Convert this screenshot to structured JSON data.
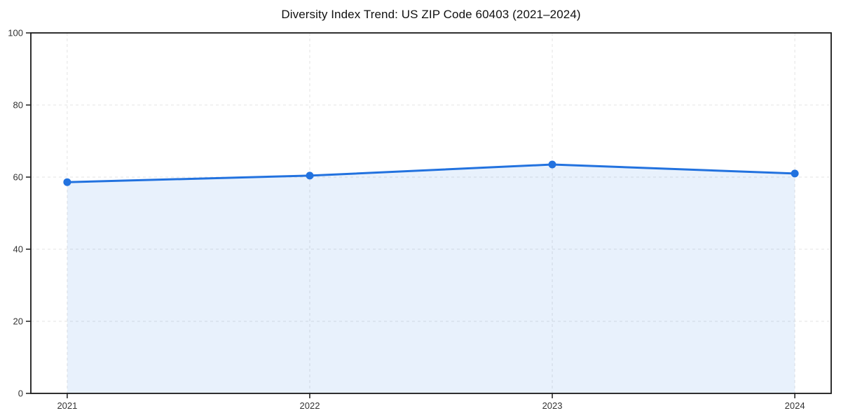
{
  "chart_data": {
    "type": "area",
    "title": "Diversity Index Trend: US ZIP Code 60403 (2021–2024)",
    "x": [
      2021,
      2022,
      2023,
      2024
    ],
    "x_tick_labels": [
      "2021",
      "2022",
      "2023",
      "2024"
    ],
    "values": [
      58.6,
      60.4,
      63.5,
      61.0
    ],
    "xlabel": "",
    "ylabel": "",
    "xlim": [
      2020.85,
      2024.15
    ],
    "ylim": [
      0,
      100
    ],
    "y_ticks": [
      0,
      20,
      40,
      60,
      80,
      100
    ],
    "y_tick_labels": [
      "0",
      "20",
      "40",
      "60",
      "80",
      "100"
    ],
    "grid": true,
    "grid_style": "dashed",
    "legend_position": "none",
    "colors": {
      "line": "#2272df",
      "marker": "#2272df",
      "area_fill": "rgba(34,114,223,0.10)",
      "grid": "#e3e3e3",
      "spine": "#1a1a1a",
      "tick_label": "#333333",
      "title": "#111111",
      "background": "#ffffff"
    }
  }
}
